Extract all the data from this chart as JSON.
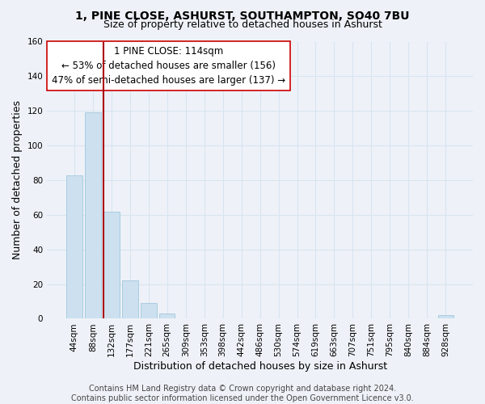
{
  "title": "1, PINE CLOSE, ASHURST, SOUTHAMPTON, SO40 7BU",
  "subtitle": "Size of property relative to detached houses in Ashurst",
  "xlabel": "Distribution of detached houses by size in Ashurst",
  "ylabel": "Number of detached properties",
  "bar_labels": [
    "44sqm",
    "88sqm",
    "132sqm",
    "177sqm",
    "221sqm",
    "265sqm",
    "309sqm",
    "353sqm",
    "398sqm",
    "442sqm",
    "486sqm",
    "530sqm",
    "574sqm",
    "619sqm",
    "663sqm",
    "707sqm",
    "751sqm",
    "795sqm",
    "840sqm",
    "884sqm",
    "928sqm"
  ],
  "bar_values": [
    83,
    119,
    62,
    22,
    9,
    3,
    0,
    0,
    0,
    0,
    0,
    0,
    0,
    0,
    0,
    0,
    0,
    0,
    0,
    0,
    2
  ],
  "bar_color": "#cce0f0",
  "bar_edge_color": "#aacce0",
  "vline_color": "#aa0000",
  "ylim": [
    0,
    160
  ],
  "yticks": [
    0,
    20,
    40,
    60,
    80,
    100,
    120,
    140,
    160
  ],
  "annotation_line1": "1 PINE CLOSE: 114sqm",
  "annotation_line2": "← 53% of detached houses are smaller (156)",
  "annotation_line3": "47% of semi-detached houses are larger (137) →",
  "footer_line1": "Contains HM Land Registry data © Crown copyright and database right 2024.",
  "footer_line2": "Contains public sector information licensed under the Open Government Licence v3.0.",
  "bg_color": "#eef2f8",
  "grid_color": "#d8e4f0",
  "title_fontsize": 10,
  "subtitle_fontsize": 9,
  "axis_label_fontsize": 9,
  "tick_fontsize": 7.5,
  "annotation_fontsize": 8.5,
  "footer_fontsize": 7
}
